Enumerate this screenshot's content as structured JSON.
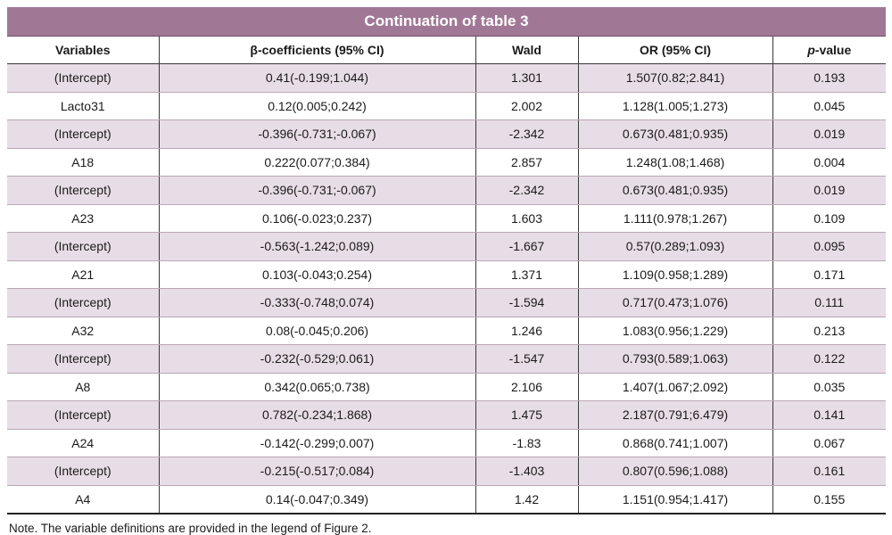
{
  "table": {
    "title": "Continuation of table 3",
    "headers": [
      {
        "text": "Variables",
        "italic_prefix": ""
      },
      {
        "text": "β-coefficients (95% CI)",
        "italic_prefix": ""
      },
      {
        "text": "Wald",
        "italic_prefix": ""
      },
      {
        "text": "OR (95% CI)",
        "italic_prefix": ""
      },
      {
        "text": "-value",
        "italic_prefix": "p"
      }
    ],
    "rows": [
      [
        "(Intercept)",
        "0.41(-0.199;1.044)",
        "1.301",
        "1.507(0.82;2.841)",
        "0.193"
      ],
      [
        "Lacto31",
        "0.12(0.005;0.242)",
        "2.002",
        "1.128(1.005;1.273)",
        "0.045"
      ],
      [
        "(Intercept)",
        "-0.396(-0.731;-0.067)",
        "-2.342",
        "0.673(0.481;0.935)",
        "0.019"
      ],
      [
        "A18",
        "0.222(0.077;0.384)",
        "2.857",
        "1.248(1.08;1.468)",
        "0.004"
      ],
      [
        "(Intercept)",
        "-0.396(-0.731;-0.067)",
        "-2.342",
        "0.673(0.481;0.935)",
        "0.019"
      ],
      [
        "A23",
        "0.106(-0.023;0.237)",
        "1.603",
        "1.111(0.978;1.267)",
        "0.109"
      ],
      [
        "(Intercept)",
        "-0.563(-1.242;0.089)",
        "-1.667",
        "0.57(0.289;1.093)",
        "0.095"
      ],
      [
        "A21",
        "0.103(-0.043;0.254)",
        "1.371",
        "1.109(0.958;1.289)",
        "0.171"
      ],
      [
        "(Intercept)",
        "-0.333(-0.748;0.074)",
        "-1.594",
        "0.717(0.473;1.076)",
        "0.111"
      ],
      [
        "A32",
        "0.08(-0.045;0.206)",
        "1.246",
        "1.083(0.956;1.229)",
        "0.213"
      ],
      [
        "(Intercept)",
        "-0.232(-0.529;0.061)",
        "-1.547",
        "0.793(0.589;1.063)",
        "0.122"
      ],
      [
        "A8",
        "0.342(0.065;0.738)",
        "2.106",
        "1.407(1.067;2.092)",
        "0.035"
      ],
      [
        "(Intercept)",
        "0.782(-0.234;1.868)",
        "1.475",
        "2.187(0.791;6.479)",
        "0.141"
      ],
      [
        "A24",
        "-0.142(-0.299;0.007)",
        "-1.83",
        "0.868(0.741;1.007)",
        "0.067"
      ],
      [
        "(Intercept)",
        "-0.215(-0.517;0.084)",
        "-1.403",
        "0.807(0.596;1.088)",
        "0.161"
      ],
      [
        "A4",
        "0.14(-0.047;0.349)",
        "1.42",
        "1.151(0.954;1.417)",
        "0.155"
      ]
    ],
    "note": "Note. The variable definitions are provided in the legend of Figure 2."
  },
  "colors": {
    "title_bg": "#a07896",
    "shaded_row": "#e7dde6",
    "plain_row": "#ffffff"
  }
}
